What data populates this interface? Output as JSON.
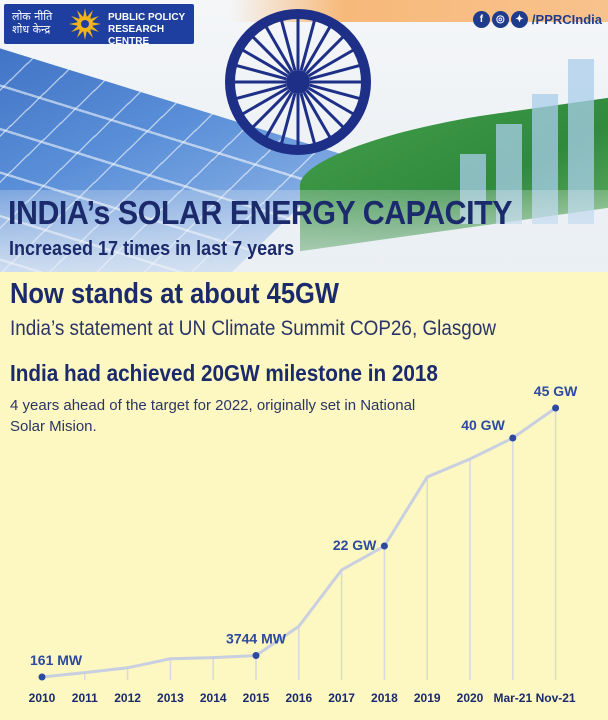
{
  "header": {
    "logo_hindi_line1": "लोक नीति",
    "logo_hindi_line2": "शोध केन्द्र",
    "logo_line1": "PUBLIC POLICY",
    "logo_line2": "RESEARCH CENTRE",
    "social_handle": "/PPRCIndia",
    "social_icons": [
      "facebook-icon",
      "instagram-icon",
      "twitter-icon"
    ]
  },
  "headline": {
    "title": "INDIA’s SOLAR ENERGY CAPACITY",
    "subtitle": "Increased 17 times in last 7 years",
    "stat": "Now stands at about 45GW",
    "source": "India’s statement at UN Climate Summit COP26, Glasgow",
    "milestone": "India had achieved 20GW milestone in 2018",
    "milestone_note": "4 years ahead of the target for 2022, originally set in National Solar Mision."
  },
  "colors": {
    "line": "#c8cfe0",
    "marker": "#2b4aa0",
    "title": "#1b2a6b",
    "background": "#fdf7c2"
  },
  "chart_data": {
    "type": "line",
    "categories": [
      "2010",
      "2011",
      "2012",
      "2013",
      "2014",
      "2015",
      "2016",
      "2017",
      "2018",
      "2019",
      "2020",
      "Mar-21",
      "Nov-21"
    ],
    "values_gw": [
      0.161,
      0.9,
      1.7,
      3.2,
      3.4,
      3.744,
      8.6,
      18.0,
      22.0,
      33.5,
      36.5,
      40.0,
      45.0
    ],
    "labels": [
      {
        "index": 0,
        "text": "161 MW"
      },
      {
        "index": 5,
        "text": "3744 MW"
      },
      {
        "index": 8,
        "text": "22 GW"
      },
      {
        "index": 11,
        "text": "40 GW"
      },
      {
        "index": 12,
        "text": "45 GW"
      }
    ],
    "ylim": [
      0,
      48
    ],
    "grid": "vertical"
  }
}
